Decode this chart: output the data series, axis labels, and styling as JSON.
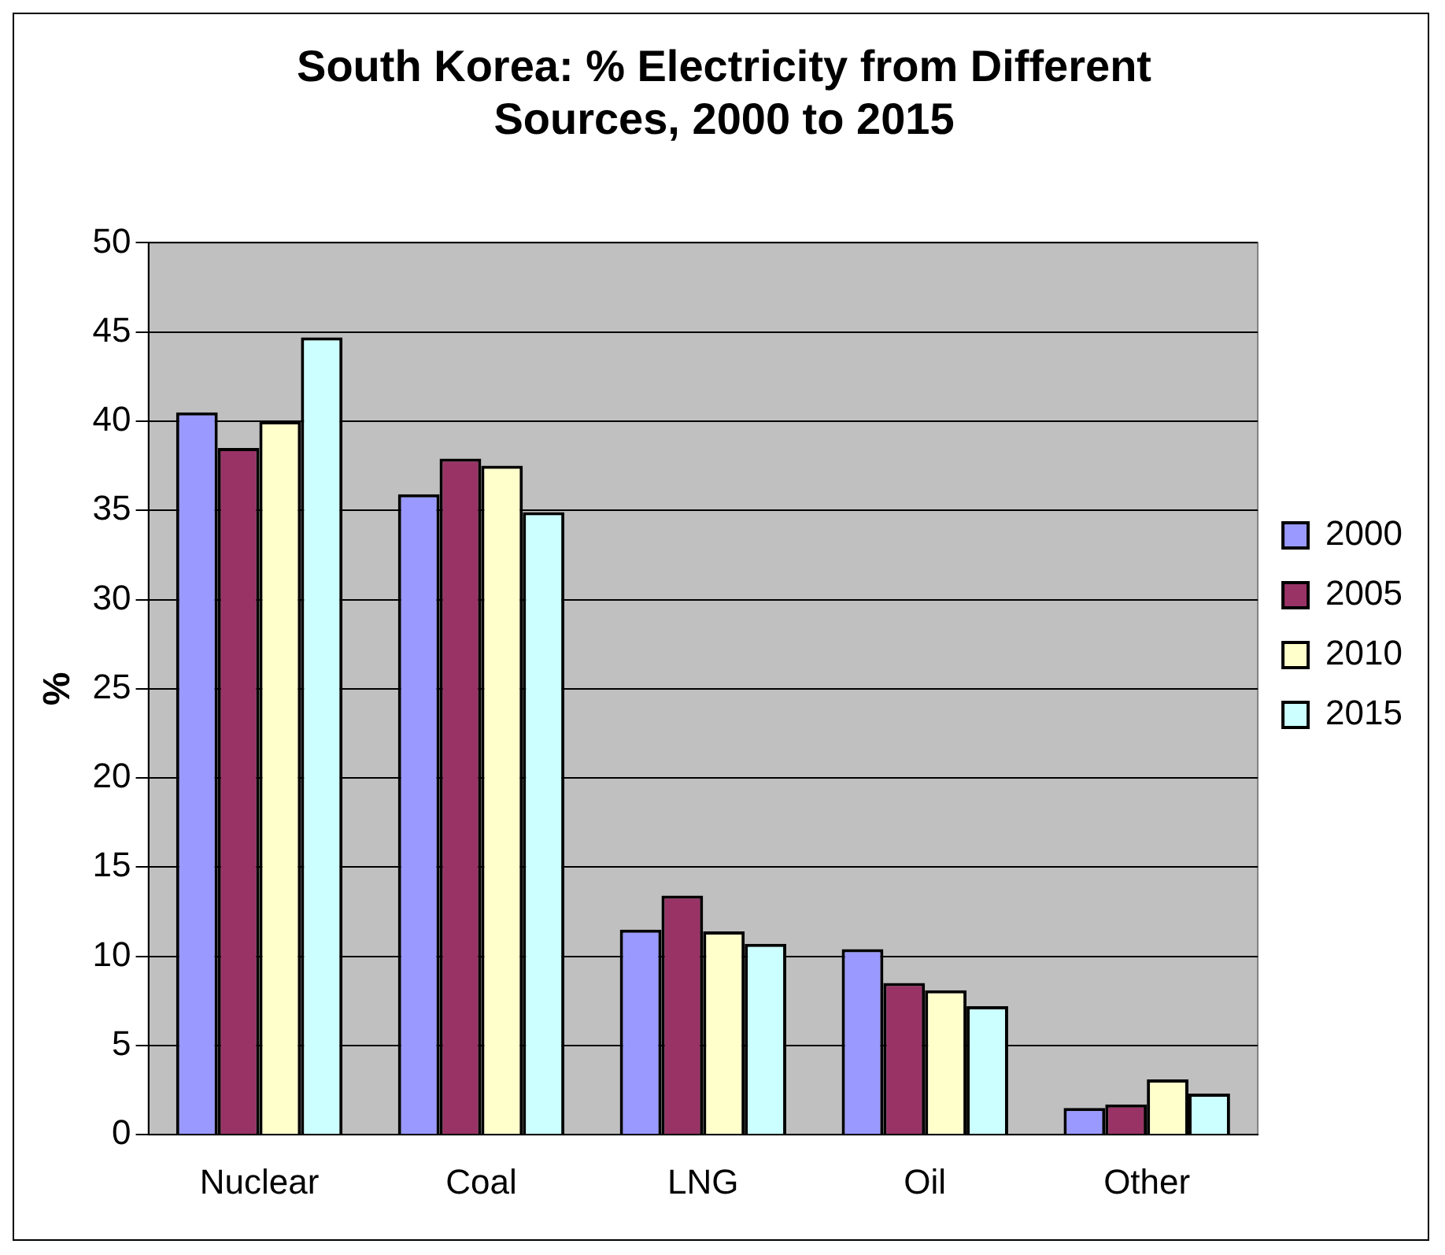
{
  "chart_data": {
    "type": "bar",
    "title": "South Korea: % Electricity from Different Sources, 2000 to 2015",
    "ylabel": "%",
    "categories": [
      "Nuclear",
      "Coal",
      "LNG",
      "Oil",
      "Other"
    ],
    "series": [
      {
        "name": "2000",
        "color": "#9999ff",
        "values": [
          40.5,
          35.9,
          11.5,
          10.4,
          1.5
        ]
      },
      {
        "name": "2005",
        "color": "#993366",
        "values": [
          38.5,
          37.9,
          13.4,
          8.5,
          1.7
        ]
      },
      {
        "name": "2010",
        "color": "#ffffcc",
        "values": [
          40.0,
          37.5,
          11.4,
          8.1,
          3.1
        ]
      },
      {
        "name": "2015",
        "color": "#ccffff",
        "values": [
          44.7,
          34.9,
          10.7,
          7.2,
          2.3
        ]
      }
    ],
    "ylim": [
      0,
      50
    ],
    "yticks": [
      0,
      5,
      10,
      15,
      20,
      25,
      30,
      35,
      40,
      45,
      50
    ],
    "grid": "y",
    "legend": "right"
  }
}
